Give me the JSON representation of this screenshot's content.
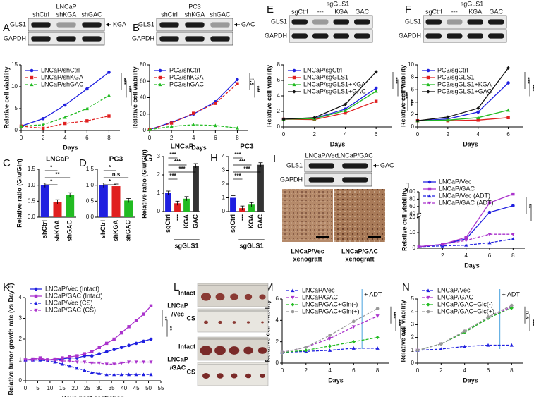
{
  "chart_data": [
    {
      "panel": "A",
      "type": "line",
      "x": [
        0,
        2,
        4,
        6,
        8
      ],
      "xlim": [
        0,
        9
      ],
      "xticks": [
        0,
        2,
        4,
        6,
        8
      ],
      "ylim": [
        0,
        15
      ],
      "yticks": [
        0,
        5,
        10,
        15
      ],
      "xlabel": "Days",
      "ylabel": "Relative cell viability",
      "series": [
        {
          "name": "LNCaP/shCtrl",
          "color": "#1f1fe0",
          "dash": false,
          "marker": "circle",
          "values": [
            1,
            2.7,
            5.8,
            9.5,
            13.3
          ]
        },
        {
          "name": "LNCaP/shKGA",
          "color": "#e02020",
          "dash": true,
          "marker": "square",
          "values": [
            1,
            0.5,
            1.6,
            2.2,
            3.3
          ]
        },
        {
          "name": "LNCaP/shGAC",
          "color": "#22bb22",
          "dash": true,
          "marker": "triangle",
          "values": [
            1,
            1.3,
            3,
            5,
            8
          ]
        }
      ],
      "annotations": [
        "***",
        "***",
        "***"
      ]
    },
    {
      "panel": "B",
      "type": "line",
      "x": [
        0,
        2,
        4,
        6,
        8
      ],
      "xlim": [
        0,
        9
      ],
      "xticks": [
        0,
        2,
        4,
        6,
        8
      ],
      "ylim": [
        0,
        80
      ],
      "yticks": [
        0,
        20,
        40,
        60,
        80
      ],
      "xlabel": "Days",
      "ylabel": "Relative cell viability",
      "series": [
        {
          "name": "PC3/shCtrl",
          "color": "#1f1fe0",
          "dash": false,
          "marker": "circle",
          "values": [
            1,
            10,
            20,
            35,
            62
          ]
        },
        {
          "name": "PC3/shKGA",
          "color": "#e02020",
          "dash": true,
          "marker": "square",
          "values": [
            1,
            9,
            21,
            33,
            57
          ]
        },
        {
          "name": "PC3/shGAC",
          "color": "#22bb22",
          "dash": true,
          "marker": "triangle",
          "values": [
            1,
            5,
            7,
            6,
            3
          ]
        }
      ],
      "annotations": [
        "n.s",
        "***"
      ]
    },
    {
      "panel": "E",
      "type": "line",
      "x": [
        0,
        2,
        4,
        6
      ],
      "xlim": [
        0,
        7
      ],
      "xticks": [
        0,
        2,
        4,
        6
      ],
      "ylim": [
        0,
        8
      ],
      "yticks": [
        0,
        2,
        4,
        6,
        8
      ],
      "xlabel": "Days",
      "ylabel": "Relative cell viability",
      "series": [
        {
          "name": "LNCaP/sgCtrl",
          "color": "#1f1fe0",
          "dash": false,
          "marker": "circle",
          "values": [
            1,
            1.1,
            2.3,
            5.0
          ]
        },
        {
          "name": "LNCaP/sgGLS1",
          "color": "#e02020",
          "dash": false,
          "marker": "square",
          "values": [
            1,
            0.95,
            1.8,
            3.3
          ]
        },
        {
          "name": "LNCaP/sgGLS1+KGA",
          "color": "#22bb22",
          "dash": false,
          "marker": "triangle",
          "values": [
            1,
            1.05,
            2.1,
            4.6
          ]
        },
        {
          "name": "LNCaP/sgGLS1+GAC",
          "color": "#111111",
          "dash": false,
          "marker": "diamond",
          "values": [
            1,
            1.2,
            2.9,
            7.1
          ]
        }
      ],
      "annotations": [
        "***",
        "***",
        "***",
        "***"
      ]
    },
    {
      "panel": "F",
      "type": "line",
      "x": [
        0,
        2,
        4,
        6
      ],
      "xlim": [
        0,
        7
      ],
      "xticks": [
        0,
        2,
        4,
        6
      ],
      "ylim": [
        0,
        10
      ],
      "yticks": [
        0,
        2,
        4,
        6,
        8,
        10
      ],
      "xlabel": "Days",
      "ylabel": "Relative cell viability",
      "series": [
        {
          "name": "PC3/sgCtrl",
          "color": "#1f1fe0",
          "dash": false,
          "marker": "circle",
          "values": [
            1,
            1.3,
            2.4,
            7.1
          ]
        },
        {
          "name": "PC3/sgGLS1",
          "color": "#e02020",
          "dash": false,
          "marker": "square",
          "values": [
            1,
            1.0,
            1.1,
            1.5
          ]
        },
        {
          "name": "PC3/sgGLS1+KGA",
          "color": "#22bb22",
          "dash": false,
          "marker": "triangle",
          "values": [
            1,
            1.1,
            1.5,
            2.7
          ]
        },
        {
          "name": "PC3/sgGLS1+GAC",
          "color": "#111111",
          "dash": false,
          "marker": "diamond",
          "values": [
            1,
            1.6,
            3.0,
            9.5
          ]
        }
      ],
      "annotations": [
        "***",
        "***",
        "***",
        "***"
      ]
    },
    {
      "panel": "C",
      "type": "bar",
      "title": "LNCaP",
      "categories": [
        "shCtrl",
        "shKGA",
        "shGAC"
      ],
      "values": [
        1.0,
        0.48,
        0.7
      ],
      "colors": [
        "#1f1fe0",
        "#e02020",
        "#22bb22"
      ],
      "ylim": [
        0,
        1.5
      ],
      "yticks": [
        {
          "value": 0,
          "label": "0.0"
        },
        {
          "value": 0.5,
          "label": "0.5"
        },
        {
          "value": 1,
          "label": "1.0"
        },
        {
          "value": 1.5,
          "label": "1.5"
        }
      ],
      "ylabel": "Relative ratio (Glu/Gln)",
      "annotations": [
        "*",
        "**",
        "*"
      ]
    },
    {
      "panel": "D",
      "type": "bar",
      "title": "PC3",
      "categories": [
        "shCtrl",
        "shKGA",
        "shGAC"
      ],
      "values": [
        1.0,
        0.97,
        0.52
      ],
      "colors": [
        "#1f1fe0",
        "#e02020",
        "#22bb22"
      ],
      "ylim": [
        0,
        1.5
      ],
      "yticks": [
        {
          "value": 0,
          "label": "0.0"
        },
        {
          "value": 0.5,
          "label": "0.5"
        },
        {
          "value": 1,
          "label": "1.0"
        },
        {
          "value": 1.5,
          "label": "1.5"
        }
      ],
      "annotations": [
        "*",
        "n.s",
        "*"
      ]
    },
    {
      "panel": "G",
      "type": "bar",
      "title": "LNCaP",
      "categories": [
        "sgCtrl",
        "---",
        "KGA",
        "GAC"
      ],
      "group": "sgGLS1",
      "values": [
        1.0,
        0.45,
        0.7,
        2.5
      ],
      "colors": [
        "#1f1fe0",
        "#e02020",
        "#22bb22",
        "#333333"
      ],
      "ylim": [
        0,
        3
      ],
      "yticks": [
        0,
        1,
        2,
        3
      ],
      "ylabel": "Relative ratio (Glu/Gln)",
      "annotations": [
        "***",
        "***",
        "***",
        "***"
      ]
    },
    {
      "panel": "H",
      "type": "bar",
      "title": "PC3",
      "categories": [
        "sgCtrl",
        "---",
        "KGA",
        "GAC"
      ],
      "group": "sgGLS1",
      "values": [
        1.0,
        0.25,
        0.5,
        3.4
      ],
      "colors": [
        "#1f1fe0",
        "#e02020",
        "#22bb22",
        "#333333"
      ],
      "ylim": [
        0,
        4
      ],
      "yticks": [
        0,
        1,
        2,
        3,
        4
      ],
      "annotations": [
        "***",
        "***",
        "***",
        "***"
      ]
    },
    {
      "panel": "J",
      "type": "line",
      "x": [
        0,
        2,
        4,
        6,
        8
      ],
      "xlim": [
        0,
        9
      ],
      "xticks": [
        2,
        4,
        6,
        8
      ],
      "ylim": [
        0,
        100
      ],
      "ybreak": [
        20,
        40
      ],
      "yticks": [
        0,
        10,
        20,
        40,
        60,
        80,
        100
      ],
      "xlabel": "Days",
      "ylabel": "Relative cell viability",
      "series": [
        {
          "name": "LNCaP/Vec",
          "color": "#1f1fe0",
          "dash": false,
          "marker": "circle",
          "values": [
            1,
            2.5,
            6,
            44,
            62
          ]
        },
        {
          "name": "LNCaP/GAC",
          "color": "#aa33cc",
          "dash": false,
          "marker": "square",
          "values": [
            1,
            2.5,
            7,
            70,
            94
          ]
        },
        {
          "name": "LNCaP/Vec (ADT)",
          "color": "#1f1fe0",
          "dash": true,
          "marker": "triangle",
          "values": [
            1,
            1.5,
            2,
            3.5,
            6
          ]
        },
        {
          "name": "LNCaP/GAC (ADT)",
          "color": "#aa33cc",
          "dash": true,
          "marker": "invtriangle",
          "values": [
            1,
            2.5,
            5,
            9,
            9
          ]
        }
      ],
      "annotations": [
        "**",
        "*"
      ]
    },
    {
      "panel": "K",
      "type": "line",
      "x": [
        0,
        3,
        6,
        9,
        12,
        15,
        18,
        21,
        24,
        27,
        30,
        33,
        36,
        39,
        42,
        45,
        48,
        51
      ],
      "xlim": [
        0,
        55
      ],
      "xticks": [
        0,
        5,
        10,
        15,
        20,
        25,
        30,
        35,
        40,
        45,
        50,
        55
      ],
      "ylim": [
        0,
        4
      ],
      "yticks": [
        0,
        1,
        2,
        3,
        4
      ],
      "xlabel": "Days post castration",
      "ylabel": "Relative tumor growth rate (vs Day 0)",
      "series": [
        {
          "name": "LNCaP/Vec (Intact)",
          "color": "#1f1fe0",
          "dash": false,
          "marker": "circle",
          "values": [
            1,
            1,
            1,
            1,
            1,
            1.05,
            1.1,
            1.1,
            1.2,
            1.2,
            1.3,
            1.4,
            1.5,
            1.6,
            1.7,
            1.8,
            1.9,
            2.0
          ]
        },
        {
          "name": "LNCaP/GAC (Intact)",
          "color": "#aa33cc",
          "dash": false,
          "marker": "square",
          "values": [
            1,
            1.05,
            1.1,
            1,
            1.05,
            1.1,
            1.15,
            1.2,
            1.3,
            1.4,
            1.6,
            1.8,
            2.0,
            2.3,
            2.6,
            2.9,
            3.2,
            3.6
          ]
        },
        {
          "name": "LNCaP/Vec (CS)",
          "color": "#1f1fe0",
          "dash": true,
          "marker": "triangle",
          "values": [
            1,
            1,
            1,
            0.95,
            0.9,
            0.8,
            0.7,
            0.6,
            0.5,
            0.4,
            0.35,
            0.3,
            0.3,
            0.3,
            0.3,
            0.3,
            0.3,
            0.3
          ]
        },
        {
          "name": "LNCaP/GAC (CS)",
          "color": "#aa33cc",
          "dash": true,
          "marker": "invtriangle",
          "values": [
            1,
            1,
            1.05,
            1,
            1,
            0.95,
            0.95,
            0.9,
            0.9,
            0.85,
            0.85,
            0.8,
            0.8,
            0.85,
            0.9,
            0.9,
            0.9,
            0.9
          ]
        }
      ],
      "annotations": [
        "**",
        "**"
      ]
    },
    {
      "panel": "M",
      "type": "line",
      "x": [
        0,
        2,
        4,
        6,
        8
      ],
      "xlim": [
        0,
        9
      ],
      "xticks": [
        0,
        2,
        4,
        6,
        8
      ],
      "ylim": [
        0,
        6
      ],
      "yticks": [
        0,
        2,
        4,
        6
      ],
      "xlabel": "Days",
      "ylabel": "Relative cell viability",
      "vline": 6.7,
      "vline_label": "+ ADT",
      "series": [
        {
          "name": "LNCaP/Vec",
          "color": "#1f1fe0",
          "dash": true,
          "marker": "triangle",
          "values": [
            1,
            1.1,
            1.2,
            1.4,
            1.4
          ]
        },
        {
          "name": "LNCaP/GAC",
          "color": "#aa33cc",
          "dash": true,
          "marker": "invtriangle",
          "values": [
            1,
            1.5,
            2.3,
            3.4,
            4.4
          ]
        },
        {
          "name": "LNCaP/GAC+Gln(-)",
          "color": "#22bb22",
          "dash": true,
          "marker": "diamond",
          "values": [
            1,
            1.2,
            1.6,
            2.0,
            2.4
          ]
        },
        {
          "name": "LNCaP/GAC+Gln(+)",
          "color": "#999999",
          "dash": true,
          "marker": "circle",
          "values": [
            1,
            1.5,
            2.6,
            3.9,
            5.1
          ]
        }
      ],
      "annotations": [
        "***",
        "***",
        "***"
      ]
    },
    {
      "panel": "N",
      "type": "line",
      "x": [
        0,
        2,
        4,
        6,
        8
      ],
      "xlim": [
        0,
        9
      ],
      "xticks": [
        0,
        2,
        4,
        6,
        8
      ],
      "ylim": [
        0,
        5
      ],
      "yticks": [
        0,
        1,
        2,
        3,
        4,
        5
      ],
      "xlabel": "Days",
      "ylabel": "Relative cell viability",
      "vline": 7,
      "vline_label": "+ ADT",
      "series": [
        {
          "name": "LNCaP/Vec",
          "color": "#1f1fe0",
          "dash": true,
          "marker": "triangle",
          "values": [
            1,
            1.1,
            1.3,
            1.4,
            1.4
          ]
        },
        {
          "name": "LNCaP/GAC",
          "color": "#aa33cc",
          "dash": true,
          "marker": "invtriangle",
          "values": [
            1,
            1.5,
            2.4,
            3.5,
            4.4
          ]
        },
        {
          "name": "LNCaP/GAC+Glc(-)",
          "color": "#22bb22",
          "dash": true,
          "marker": "diamond",
          "values": [
            1,
            1.5,
            2.4,
            3.5,
            4.3
          ]
        },
        {
          "name": "LNCaP/GAC+Glc(+)",
          "color": "#999999",
          "dash": true,
          "marker": "circle",
          "values": [
            1,
            1.5,
            2.5,
            3.6,
            4.5
          ]
        }
      ],
      "annotations": [
        "n.s",
        "***"
      ]
    }
  ],
  "blots": [
    {
      "title": "LNCaP",
      "lanes": [
        "shCtrl",
        "shKGA",
        "shGAC"
      ],
      "rows": [
        "GLS1",
        "GAPDH"
      ],
      "arrow": "KGA"
    },
    {
      "title": "PC3",
      "lanes": [
        "shCtrl",
        "shKGA",
        "shGAC"
      ],
      "rows": [
        "GLS1",
        "GAPDH"
      ],
      "arrow": "GAC"
    },
    {
      "title": "sgGLS1",
      "lanes": [
        "sgCtrl",
        "---",
        "KGA",
        "GAC"
      ],
      "rows": [
        "GLS1",
        "GAPDH"
      ]
    },
    {
      "title": "sgGLS1",
      "lanes": [
        "sgCtrl",
        "---",
        "KGA",
        "GAC"
      ],
      "rows": [
        "GLS1",
        "GAPDH"
      ]
    },
    {
      "panel": "I",
      "lanes": [
        "LNCaP/Vec",
        "LNCaP/GAC"
      ],
      "rows": [
        "GLS1",
        "GAPDH"
      ],
      "arrow": "GAC"
    }
  ],
  "xenograft": {
    "captions": [
      [
        "LNCaP/Vec",
        "xenograft"
      ],
      [
        "LNCaP/GAC",
        "xenograft"
      ]
    ]
  },
  "tumors": {
    "panel": "L",
    "groups": [
      {
        "name": [
          "LNCaP",
          "/Vec"
        ],
        "rows": [
          "Intact",
          "CS"
        ]
      },
      {
        "name": [
          "LNCaP",
          "/GAC"
        ],
        "rows": [
          "Intact",
          "CS"
        ]
      }
    ]
  }
}
